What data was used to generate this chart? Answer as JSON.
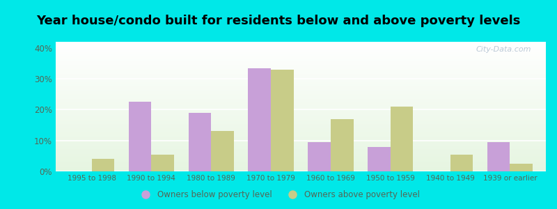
{
  "title": "Year house/condo built for residents below and above poverty levels",
  "categories": [
    "1995 to 1998",
    "1990 to 1994",
    "1980 to 1989",
    "1970 to 1979",
    "1960 to 1969",
    "1950 to 1959",
    "1940 to 1949",
    "1939 or earlier"
  ],
  "below_poverty": [
    0,
    22.5,
    19.0,
    33.5,
    9.5,
    8.0,
    0,
    9.5
  ],
  "above_poverty": [
    4.0,
    5.5,
    13.0,
    33.0,
    17.0,
    21.0,
    5.5,
    2.5
  ],
  "below_color": "#c8a0d8",
  "above_color": "#c8cc88",
  "ylabel_ticks": [
    "0%",
    "10%",
    "20%",
    "30%",
    "40%"
  ],
  "ytick_vals": [
    0,
    10,
    20,
    30,
    40
  ],
  "ylim": [
    0,
    42
  ],
  "legend_below": "Owners below poverty level",
  "legend_above": "Owners above poverty level",
  "outer_bg": "#00e8e8",
  "title_fontsize": 13,
  "bar_width": 0.38,
  "watermark": "City-Data.com"
}
